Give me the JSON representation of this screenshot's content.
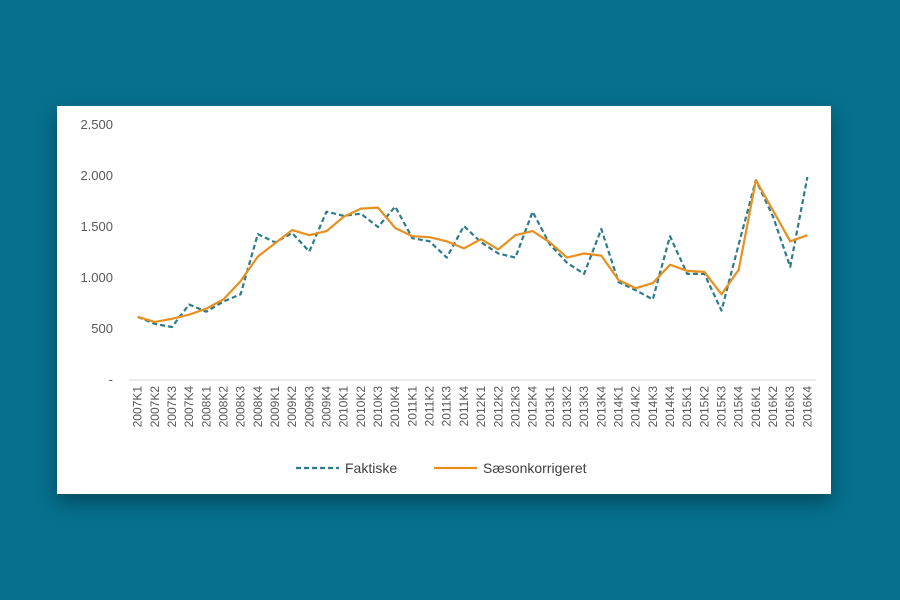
{
  "chart_data": {
    "type": "line",
    "title": "",
    "xlabel": "",
    "ylabel": "",
    "ylim": [
      0,
      2500
    ],
    "yticks": [
      {
        "value": 0,
        "label": "-"
      },
      {
        "value": 500,
        "label": "500"
      },
      {
        "value": 1000,
        "label": "1.000"
      },
      {
        "value": 1500,
        "label": "1.500"
      },
      {
        "value": 2000,
        "label": "2.000"
      },
      {
        "value": 2500,
        "label": "2.500"
      }
    ],
    "grid": false,
    "legend_position": "bottom",
    "categories": [
      "2007K1",
      "2007K2",
      "2007K3",
      "2007K4",
      "2008K1",
      "2008K2",
      "2008K3",
      "2008K4",
      "2009K1",
      "2009K2",
      "2009K3",
      "2009K4",
      "2010K1",
      "2010K2",
      "2010K3",
      "2010K4",
      "2011K1",
      "2011K2",
      "2011K3",
      "2011K4",
      "2012K1",
      "2012K2",
      "2012K3",
      "2012K4",
      "2013K1",
      "2013K2",
      "2013K3",
      "2013K4",
      "2014K1",
      "2014K2",
      "2014K3",
      "2014K4",
      "2015K1",
      "2015K2",
      "2015K3",
      "2015K4",
      "2016K1",
      "2016K2",
      "2016K3",
      "2016K4"
    ],
    "series": [
      {
        "name": "Faktiske",
        "color": "#2e7b8c",
        "style": "dashed",
        "values": [
          620,
          550,
          520,
          740,
          670,
          770,
          840,
          1430,
          1350,
          1440,
          1260,
          1650,
          1610,
          1630,
          1500,
          1700,
          1390,
          1360,
          1200,
          1510,
          1350,
          1240,
          1200,
          1650,
          1330,
          1150,
          1040,
          1480,
          960,
          880,
          790,
          1410,
          1040,
          1040,
          680,
          1330,
          1960,
          1600,
          1110,
          1990
        ]
      },
      {
        "name": "Sæsonkorrigeret",
        "color": "#e8901f",
        "style": "solid",
        "values": [
          620,
          570,
          600,
          640,
          700,
          790,
          970,
          1210,
          1340,
          1470,
          1420,
          1460,
          1600,
          1680,
          1690,
          1490,
          1410,
          1400,
          1360,
          1290,
          1380,
          1280,
          1420,
          1460,
          1350,
          1200,
          1240,
          1220,
          980,
          900,
          950,
          1130,
          1070,
          1060,
          840,
          1080,
          1960,
          1660,
          1360,
          1420
        ]
      }
    ]
  }
}
